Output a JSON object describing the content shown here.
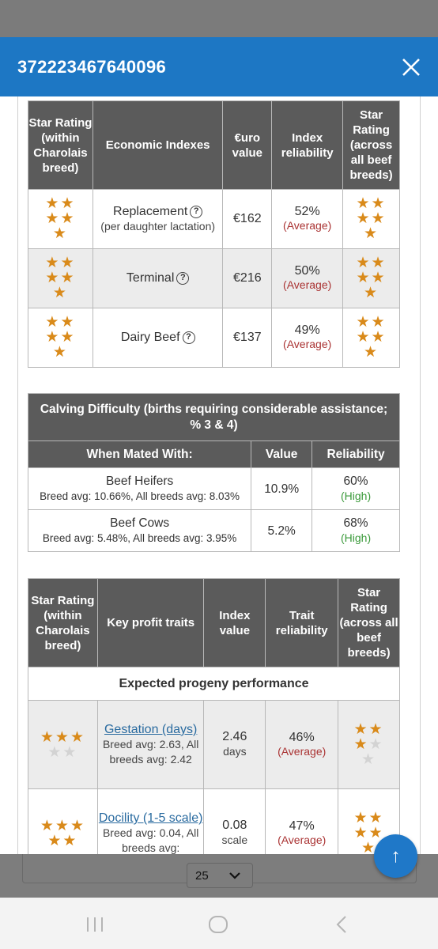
{
  "header": {
    "title": "372223467640096"
  },
  "economic": {
    "headers": [
      "Star Rating (within Charolais breed)",
      "Economic Indexes",
      "€uro value",
      "Index reliability",
      "Star Rating (across all beef breeds)"
    ],
    "rows": [
      {
        "name": "Replacement",
        "note": "(per daughter lactation)",
        "value": "€162",
        "reliability": "52%",
        "rel_label": "(Average)",
        "stars_within": 5,
        "stars_across": 5
      },
      {
        "name": "Terminal",
        "note": "",
        "value": "€216",
        "reliability": "50%",
        "rel_label": "(Average)",
        "stars_within": 5,
        "stars_across": 5
      },
      {
        "name": "Dairy Beef",
        "note": "",
        "value": "€137",
        "reliability": "49%",
        "rel_label": "(Average)",
        "stars_within": 5,
        "stars_across": 5
      }
    ]
  },
  "calving": {
    "caption": "Calving Difficulty (births requiring considerable assistance; % 3 & 4)",
    "headers": [
      "When Mated With:",
      "Value",
      "Reliability"
    ],
    "rows": [
      {
        "name": "Beef Heifers",
        "avg": "Breed avg: 10.66%, All breeds avg: 8.03%",
        "value": "10.9%",
        "reliability": "60%",
        "rel_label": "(High)"
      },
      {
        "name": "Beef Cows",
        "avg": "Breed avg: 5.48%, All breeds avg: 3.95%",
        "value": "5.2%",
        "reliability": "68%",
        "rel_label": "(High)"
      }
    ]
  },
  "traits": {
    "headers": [
      "Star Rating (within Charolais breed)",
      "Key profit traits",
      "Index value",
      "Trait reliability",
      "Star Rating (across all beef breeds)"
    ],
    "section": "Expected progeny performance",
    "rows": [
      {
        "name": "Gestation (days)",
        "avg": "Breed avg: 2.63, All breeds avg: 2.42",
        "value": "2.46",
        "unit": "days",
        "reliability": "46%",
        "rel_label": "(Average)",
        "stars_within": 3,
        "stars_across": 3
      },
      {
        "name": "Docility (1-5 scale)",
        "avg": "Breed avg: 0.04, All breeds avg:",
        "value": "0.08",
        "unit": "scale",
        "reliability": "47%",
        "rel_label": "(Average)",
        "stars_within": 5,
        "stars_across": 5
      }
    ]
  },
  "pager": {
    "page_size": "25"
  },
  "colors": {
    "header": "#1d77c4",
    "table_header": "#5b5b5b",
    "star": "#d98a1a",
    "average": "#a33333",
    "high": "#3a9a3a"
  }
}
